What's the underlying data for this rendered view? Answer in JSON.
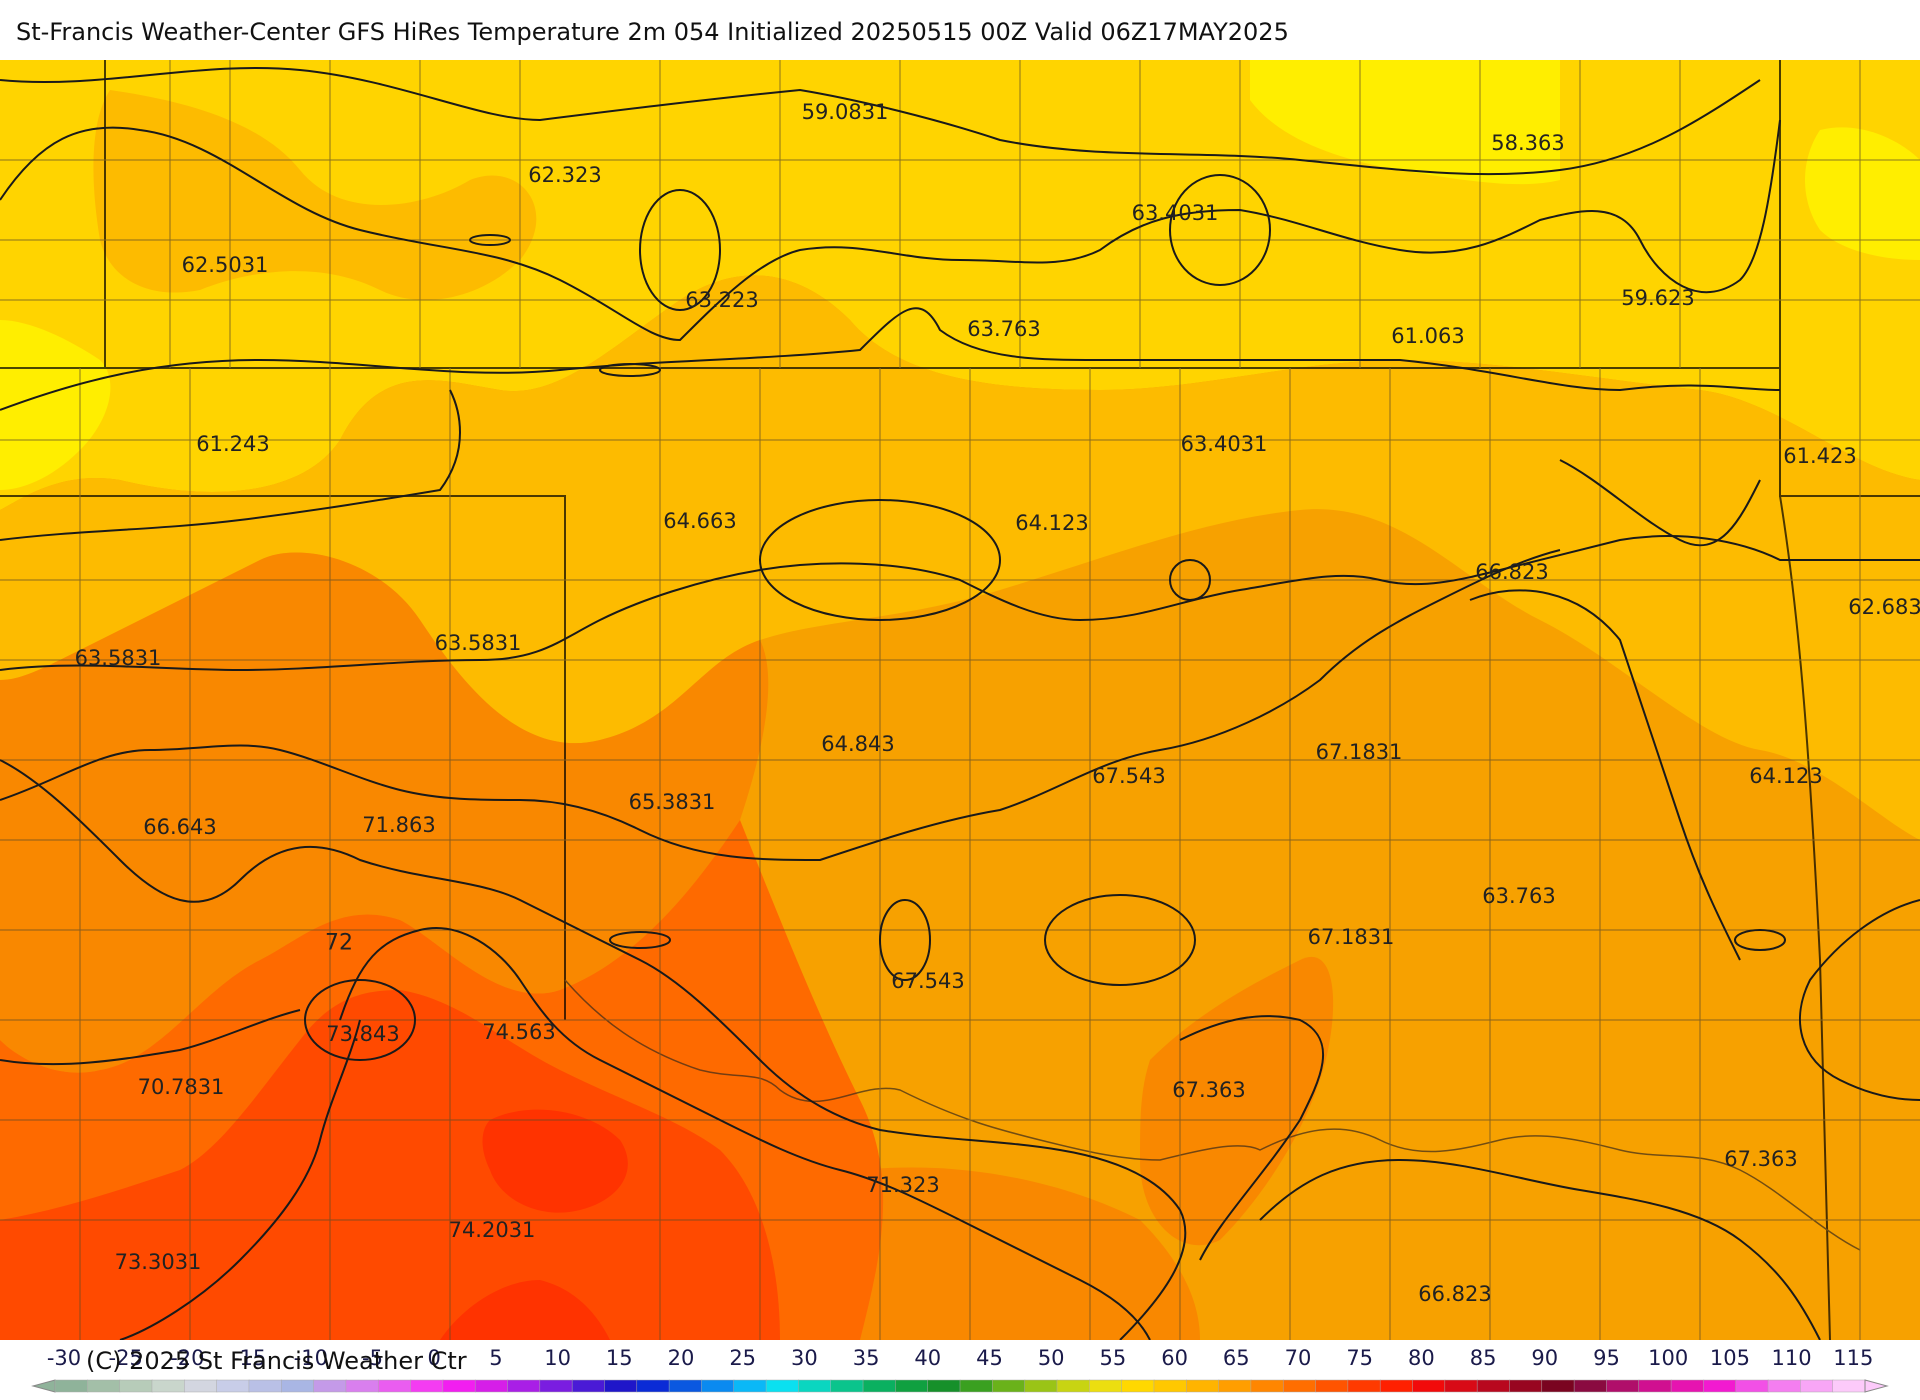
{
  "title": "St-Francis Weather-Center GFS HiRes Temperature 2m  054 Initialized 20250515 00Z Valid 06Z17MAY2025",
  "copyright": "(C) 2025 St Francis Weather Ctr",
  "colors": {
    "cool_yellow": "#ffee00",
    "yellow": "#ffd400",
    "light_orange": "#fdbb00",
    "orange": "#f7a100",
    "dark_orange": "#f98800",
    "red_orange": "#fe6a00",
    "red": "#ff4a00",
    "deep_red": "#ff3300",
    "contour_line": "#1a1a1a",
    "boundary_line": "#5a4a2a"
  },
  "temperature_labels": [
    {
      "id": "t1",
      "text": "59.0831"
    },
    {
      "id": "t2",
      "text": "58.363"
    },
    {
      "id": "t3",
      "text": "62.323"
    },
    {
      "id": "t4",
      "text": "63.4031"
    },
    {
      "id": "t5",
      "text": "62.5031"
    },
    {
      "id": "t6",
      "text": "63.223"
    },
    {
      "id": "t7",
      "text": "63.763"
    },
    {
      "id": "t8",
      "text": "61.063"
    },
    {
      "id": "t9",
      "text": "59.623"
    },
    {
      "id": "t10",
      "text": "61.243"
    },
    {
      "id": "t11",
      "text": "63.4031"
    },
    {
      "id": "t12",
      "text": "61.423"
    },
    {
      "id": "t13",
      "text": "64.663"
    },
    {
      "id": "t14",
      "text": "64.123"
    },
    {
      "id": "t15",
      "text": "66.823"
    },
    {
      "id": "t16",
      "text": "62.683"
    },
    {
      "id": "t17",
      "text": "63.5831"
    },
    {
      "id": "t18",
      "text": "63.5831"
    },
    {
      "id": "t19",
      "text": "64.843"
    },
    {
      "id": "t20",
      "text": "67.1831"
    },
    {
      "id": "t21",
      "text": "67.543"
    },
    {
      "id": "t22",
      "text": "64.123"
    },
    {
      "id": "t23",
      "text": "66.643"
    },
    {
      "id": "t24",
      "text": "71.863"
    },
    {
      "id": "t25",
      "text": "65.3831"
    },
    {
      "id": "t26",
      "text": "63.763"
    },
    {
      "id": "t27",
      "text": "67.1831"
    },
    {
      "id": "t28",
      "text": "67.543"
    },
    {
      "id": "t29",
      "text": "73.843"
    },
    {
      "id": "t30",
      "text": "74.563"
    },
    {
      "id": "t31",
      "text": "70.7831"
    },
    {
      "id": "t32",
      "text": "67.363"
    },
    {
      "id": "t33",
      "text": "67.363"
    },
    {
      "id": "t34",
      "text": "71.323"
    },
    {
      "id": "t35",
      "text": "74.2031"
    },
    {
      "id": "t36",
      "text": "73.3031"
    },
    {
      "id": "t37",
      "text": "66.823"
    }
  ],
  "contour_label_72": "72",
  "colorbar": {
    "ticks": [
      "-30",
      "-25",
      "-20",
      "-15",
      "-10",
      "-5",
      "0",
      "5",
      "10",
      "15",
      "20",
      "25",
      "30",
      "35",
      "40",
      "45",
      "50",
      "55",
      "60",
      "65",
      "70",
      "75",
      "80",
      "85",
      "90",
      "95",
      "100",
      "105",
      "110",
      "115"
    ],
    "swatches": [
      "#8fb39a",
      "#a3bfa8",
      "#b7ccb9",
      "#c9d6cc",
      "#d3d6e0",
      "#c8cde8",
      "#b9c0e6",
      "#a9b6e4",
      "#c49ae8",
      "#d97fee",
      "#ea5df0",
      "#f43cf2",
      "#f21ef0",
      "#d61ee8",
      "#a91fe6",
      "#7a1de0",
      "#4a1ad6",
      "#1f16c9",
      "#0a2bd6",
      "#0a58e0",
      "#0a8af0",
      "#0ab8f7",
      "#0ae0f0",
      "#0ad6c0",
      "#0ac48c",
      "#0ab060",
      "#10a040",
      "#16902a",
      "#3aa020",
      "#6ab21a",
      "#9ac416",
      "#c8d412",
      "#ecde10",
      "#ffd800",
      "#ffc800",
      "#ffb400",
      "#ff9e00",
      "#ff8600",
      "#ff6e00",
      "#ff5400",
      "#ff3a00",
      "#ff2000",
      "#f20a0a",
      "#d80a16",
      "#b8081e",
      "#980620",
      "#7a0420",
      "#8a0a40",
      "#b00e6a",
      "#d01090",
      "#e614b0",
      "#f21ad0",
      "#f250e6",
      "#f47ef0",
      "#f8a6f6",
      "#fccafa"
    ]
  }
}
